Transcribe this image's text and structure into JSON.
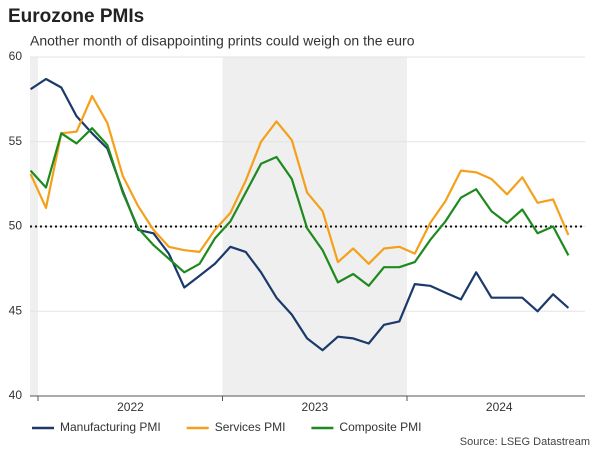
{
  "chart_data": {
    "type": "line",
    "title": "Eurozone PMIs",
    "subtitle": "Another month of disappointing prints could weigh on the euro",
    "source": "Source: LSEG Datastream",
    "x": [
      2021.958,
      2022.042,
      2022.125,
      2022.208,
      2022.292,
      2022.375,
      2022.458,
      2022.542,
      2022.625,
      2022.708,
      2022.792,
      2022.875,
      2022.958,
      2023.042,
      2023.125,
      2023.208,
      2023.292,
      2023.375,
      2023.458,
      2023.542,
      2023.625,
      2023.708,
      2023.792,
      2023.875,
      2023.958,
      2024.042,
      2024.125,
      2024.208,
      2024.292,
      2024.375,
      2024.458,
      2024.542,
      2024.625,
      2024.708,
      2024.792,
      2024.875
    ],
    "xlim": [
      2021.955,
      2024.965
    ],
    "xticks": [
      {
        "value": 2022.5,
        "label": "2022"
      },
      {
        "value": 2023.5,
        "label": "2023"
      },
      {
        "value": 2024.5,
        "label": "2024"
      }
    ],
    "ylim": [
      40,
      60
    ],
    "yticks": [
      40,
      45,
      50,
      55,
      60
    ],
    "grid": true,
    "reference_line": 50,
    "legend": "bottom",
    "series": [
      {
        "name": "Manufacturing PMI",
        "color": "#1b3a6b",
        "values": [
          58.1,
          58.7,
          58.2,
          56.5,
          55.5,
          54.6,
          52.1,
          49.8,
          49.6,
          48.4,
          46.4,
          47.1,
          47.8,
          48.8,
          48.5,
          47.3,
          45.8,
          44.8,
          43.4,
          42.7,
          43.5,
          43.4,
          43.1,
          44.2,
          44.4,
          46.6,
          46.5,
          46.1,
          45.7,
          47.3,
          45.8,
          45.8,
          45.8,
          45.0,
          46.0,
          45.2
        ]
      },
      {
        "name": "Services PMI",
        "color": "#f5a01a",
        "values": [
          53.1,
          51.1,
          55.5,
          55.6,
          57.7,
          56.1,
          53.0,
          51.2,
          49.8,
          48.8,
          48.6,
          48.5,
          49.8,
          50.8,
          52.7,
          55.0,
          56.2,
          55.1,
          52.0,
          50.9,
          47.9,
          48.7,
          47.8,
          48.7,
          48.8,
          48.4,
          50.2,
          51.5,
          53.3,
          53.2,
          52.8,
          51.9,
          52.9,
          51.4,
          51.6,
          49.5
        ]
      },
      {
        "name": "Composite PMI",
        "color": "#1e8a1e",
        "values": [
          53.3,
          52.3,
          55.5,
          54.9,
          55.8,
          54.8,
          52.0,
          49.9,
          48.9,
          48.1,
          47.3,
          47.8,
          49.3,
          50.3,
          52.0,
          53.7,
          54.1,
          52.8,
          49.9,
          48.6,
          46.7,
          47.2,
          46.5,
          47.6,
          47.6,
          47.9,
          49.2,
          50.3,
          51.7,
          52.2,
          50.9,
          50.2,
          51.0,
          49.6,
          50.0,
          48.3
        ]
      }
    ]
  }
}
